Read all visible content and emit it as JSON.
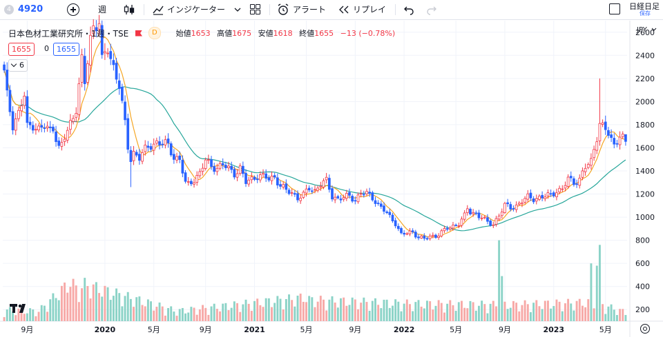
{
  "toolbar": {
    "symbol_badge": "4",
    "symbol": "4920",
    "interval": "週",
    "indicators": "インジケーター",
    "alert": "アラート",
    "replay": "リプレイ",
    "right_title": "日経日足",
    "right_sub": "保存"
  },
  "legend": {
    "title": "日本色材工業研究所・1週・TSE",
    "d_badge": "D",
    "open_label": "始値",
    "open": "1653",
    "high_label": "高値",
    "high": "1675",
    "low_label": "安値",
    "low": "1618",
    "close_label": "終値",
    "close": "1655",
    "change": "−13 (−0.78%)",
    "bid": "1655",
    "spread": "0",
    "ask": "1655",
    "indicator_count": "6"
  },
  "colors": {
    "up": "#f23645",
    "down": "#2962ff",
    "vol_up": "#f7a9a7",
    "vol_down": "#8bd3c7",
    "vol_spike": "#8bd3c7",
    "ma_short": "#f5a623",
    "ma_long": "#26a69a",
    "grid": "#f0f3fa",
    "text": "#131722"
  },
  "chart_data": {
    "type": "candlestick",
    "currency": "JPY",
    "y_ticks": [
      200,
      400,
      600,
      800,
      1000,
      1200,
      1400,
      1600,
      1800,
      2000,
      2200,
      2400,
      2600
    ],
    "ylim": [
      100,
      2700
    ],
    "x_ticks": [
      "9月",
      "2020",
      "5月",
      "9月",
      "2021",
      "5月",
      "9月",
      "2022",
      "5月",
      "9月",
      "2023",
      "5月"
    ],
    "x_tick_index": [
      8,
      35,
      52,
      70,
      87,
      105,
      122,
      139,
      157,
      174,
      191,
      209
    ],
    "weeks": 217,
    "price_anchors": [
      [
        0,
        2250
      ],
      [
        1,
        2050
      ],
      [
        3,
        1800
      ],
      [
        5,
        1900
      ],
      [
        7,
        2050
      ],
      [
        8,
        1780
      ],
      [
        10,
        1800
      ],
      [
        12,
        1760
      ],
      [
        14,
        1780
      ],
      [
        16,
        1750
      ],
      [
        17,
        1780
      ],
      [
        19,
        1600
      ],
      [
        20,
        1620
      ],
      [
        22,
        1750
      ],
      [
        24,
        1870
      ],
      [
        25,
        1950
      ],
      [
        27,
        2350
      ],
      [
        28,
        2150
      ],
      [
        30,
        2550
      ],
      [
        31,
        2650
      ],
      [
        33,
        2700
      ],
      [
        34,
        2350
      ],
      [
        36,
        2450
      ],
      [
        38,
        2300
      ],
      [
        40,
        2150
      ],
      [
        42,
        1800
      ],
      [
        43,
        1600
      ],
      [
        44,
        1500
      ],
      [
        45,
        1560
      ],
      [
        47,
        1520
      ],
      [
        49,
        1580
      ],
      [
        51,
        1620
      ],
      [
        53,
        1650
      ],
      [
        55,
        1640
      ],
      [
        57,
        1620
      ],
      [
        59,
        1520
      ],
      [
        61,
        1500
      ],
      [
        63,
        1290
      ],
      [
        64,
        1280
      ],
      [
        66,
        1330
      ],
      [
        68,
        1380
      ],
      [
        70,
        1490
      ],
      [
        72,
        1440
      ],
      [
        74,
        1430
      ],
      [
        76,
        1450
      ],
      [
        78,
        1420
      ],
      [
        80,
        1380
      ],
      [
        82,
        1420
      ],
      [
        84,
        1300
      ],
      [
        86,
        1330
      ],
      [
        88,
        1360
      ],
      [
        90,
        1350
      ],
      [
        92,
        1330
      ],
      [
        94,
        1350
      ],
      [
        96,
        1270
      ],
      [
        98,
        1230
      ],
      [
        100,
        1210
      ],
      [
        102,
        1170
      ],
      [
        104,
        1190
      ],
      [
        106,
        1250
      ],
      [
        108,
        1230
      ],
      [
        110,
        1290
      ],
      [
        112,
        1310
      ],
      [
        114,
        1180
      ],
      [
        116,
        1160
      ],
      [
        118,
        1170
      ],
      [
        120,
        1180
      ],
      [
        122,
        1150
      ],
      [
        124,
        1210
      ],
      [
        126,
        1200
      ],
      [
        128,
        1170
      ],
      [
        130,
        1110
      ],
      [
        132,
        1060
      ],
      [
        134,
        1000
      ],
      [
        136,
        950
      ],
      [
        138,
        850
      ],
      [
        140,
        860
      ],
      [
        142,
        870
      ],
      [
        144,
        830
      ],
      [
        146,
        810
      ],
      [
        148,
        830
      ],
      [
        150,
        840
      ],
      [
        152,
        870
      ],
      [
        154,
        900
      ],
      [
        156,
        920
      ],
      [
        158,
        950
      ],
      [
        160,
        1010
      ],
      [
        161,
        1070
      ],
      [
        162,
        1040
      ],
      [
        164,
        1030
      ],
      [
        166,
        1000
      ],
      [
        168,
        950
      ],
      [
        170,
        940
      ],
      [
        172,
        1020
      ],
      [
        174,
        1100
      ],
      [
        176,
        1080
      ],
      [
        178,
        1100
      ],
      [
        180,
        1140
      ],
      [
        182,
        1170
      ],
      [
        184,
        1160
      ],
      [
        186,
        1170
      ],
      [
        188,
        1180
      ],
      [
        190,
        1190
      ],
      [
        192,
        1230
      ],
      [
        194,
        1240
      ],
      [
        196,
        1330
      ],
      [
        198,
        1300
      ],
      [
        200,
        1330
      ],
      [
        202,
        1430
      ],
      [
        204,
        1480
      ],
      [
        206,
        1700
      ],
      [
        207,
        1820
      ],
      [
        208,
        1780
      ],
      [
        210,
        1720
      ],
      [
        212,
        1620
      ],
      [
        214,
        1720
      ],
      [
        216,
        1655
      ]
    ],
    "volume_spikes": [
      [
        172,
        800
      ],
      [
        173,
        490
      ],
      [
        204,
        600
      ],
      [
        206,
        580
      ],
      [
        207,
        760
      ]
    ],
    "volume_base": [
      [
        0,
        180
      ],
      [
        12,
        170
      ],
      [
        23,
        400
      ],
      [
        26,
        330
      ],
      [
        28,
        380
      ],
      [
        60,
        170
      ],
      [
        105,
        280
      ],
      [
        106,
        260
      ],
      [
        140,
        230
      ],
      [
        174,
        220
      ],
      [
        205,
        240
      ],
      [
        216,
        160
      ]
    ],
    "series": [
      {
        "name": "6",
        "type": "ma",
        "period": 6
      },
      {
        "type": "ma",
        "period": 26
      }
    ]
  }
}
